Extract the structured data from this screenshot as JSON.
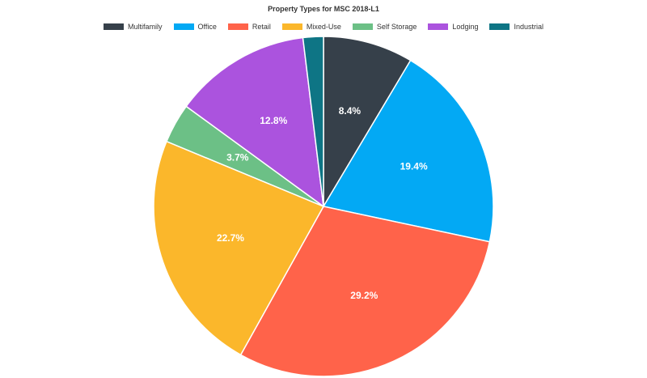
{
  "chart_data": {
    "type": "pie",
    "title": "Property Types for MSC 2018-L1",
    "legend_position": "top",
    "slices": [
      {
        "label": "Multifamily",
        "value": 8.4,
        "display": "8.4%",
        "color": "#36404a"
      },
      {
        "label": "Office",
        "value": 19.4,
        "display": "19.4%",
        "color": "#03a9f4"
      },
      {
        "label": "Retail",
        "value": 29.2,
        "display": "29.2%",
        "color": "#ff634a"
      },
      {
        "label": "Mixed-Use",
        "value": 22.7,
        "display": "22.7%",
        "color": "#fbb72b"
      },
      {
        "label": "Self Storage",
        "value": 3.7,
        "display": "3.7%",
        "color": "#6cc086"
      },
      {
        "label": "Lodging",
        "value": 12.8,
        "display": "12.8%",
        "color": "#ab53de"
      },
      {
        "label": "Industrial",
        "value": 1.9,
        "display": "",
        "color": "#0e7585"
      }
    ]
  }
}
